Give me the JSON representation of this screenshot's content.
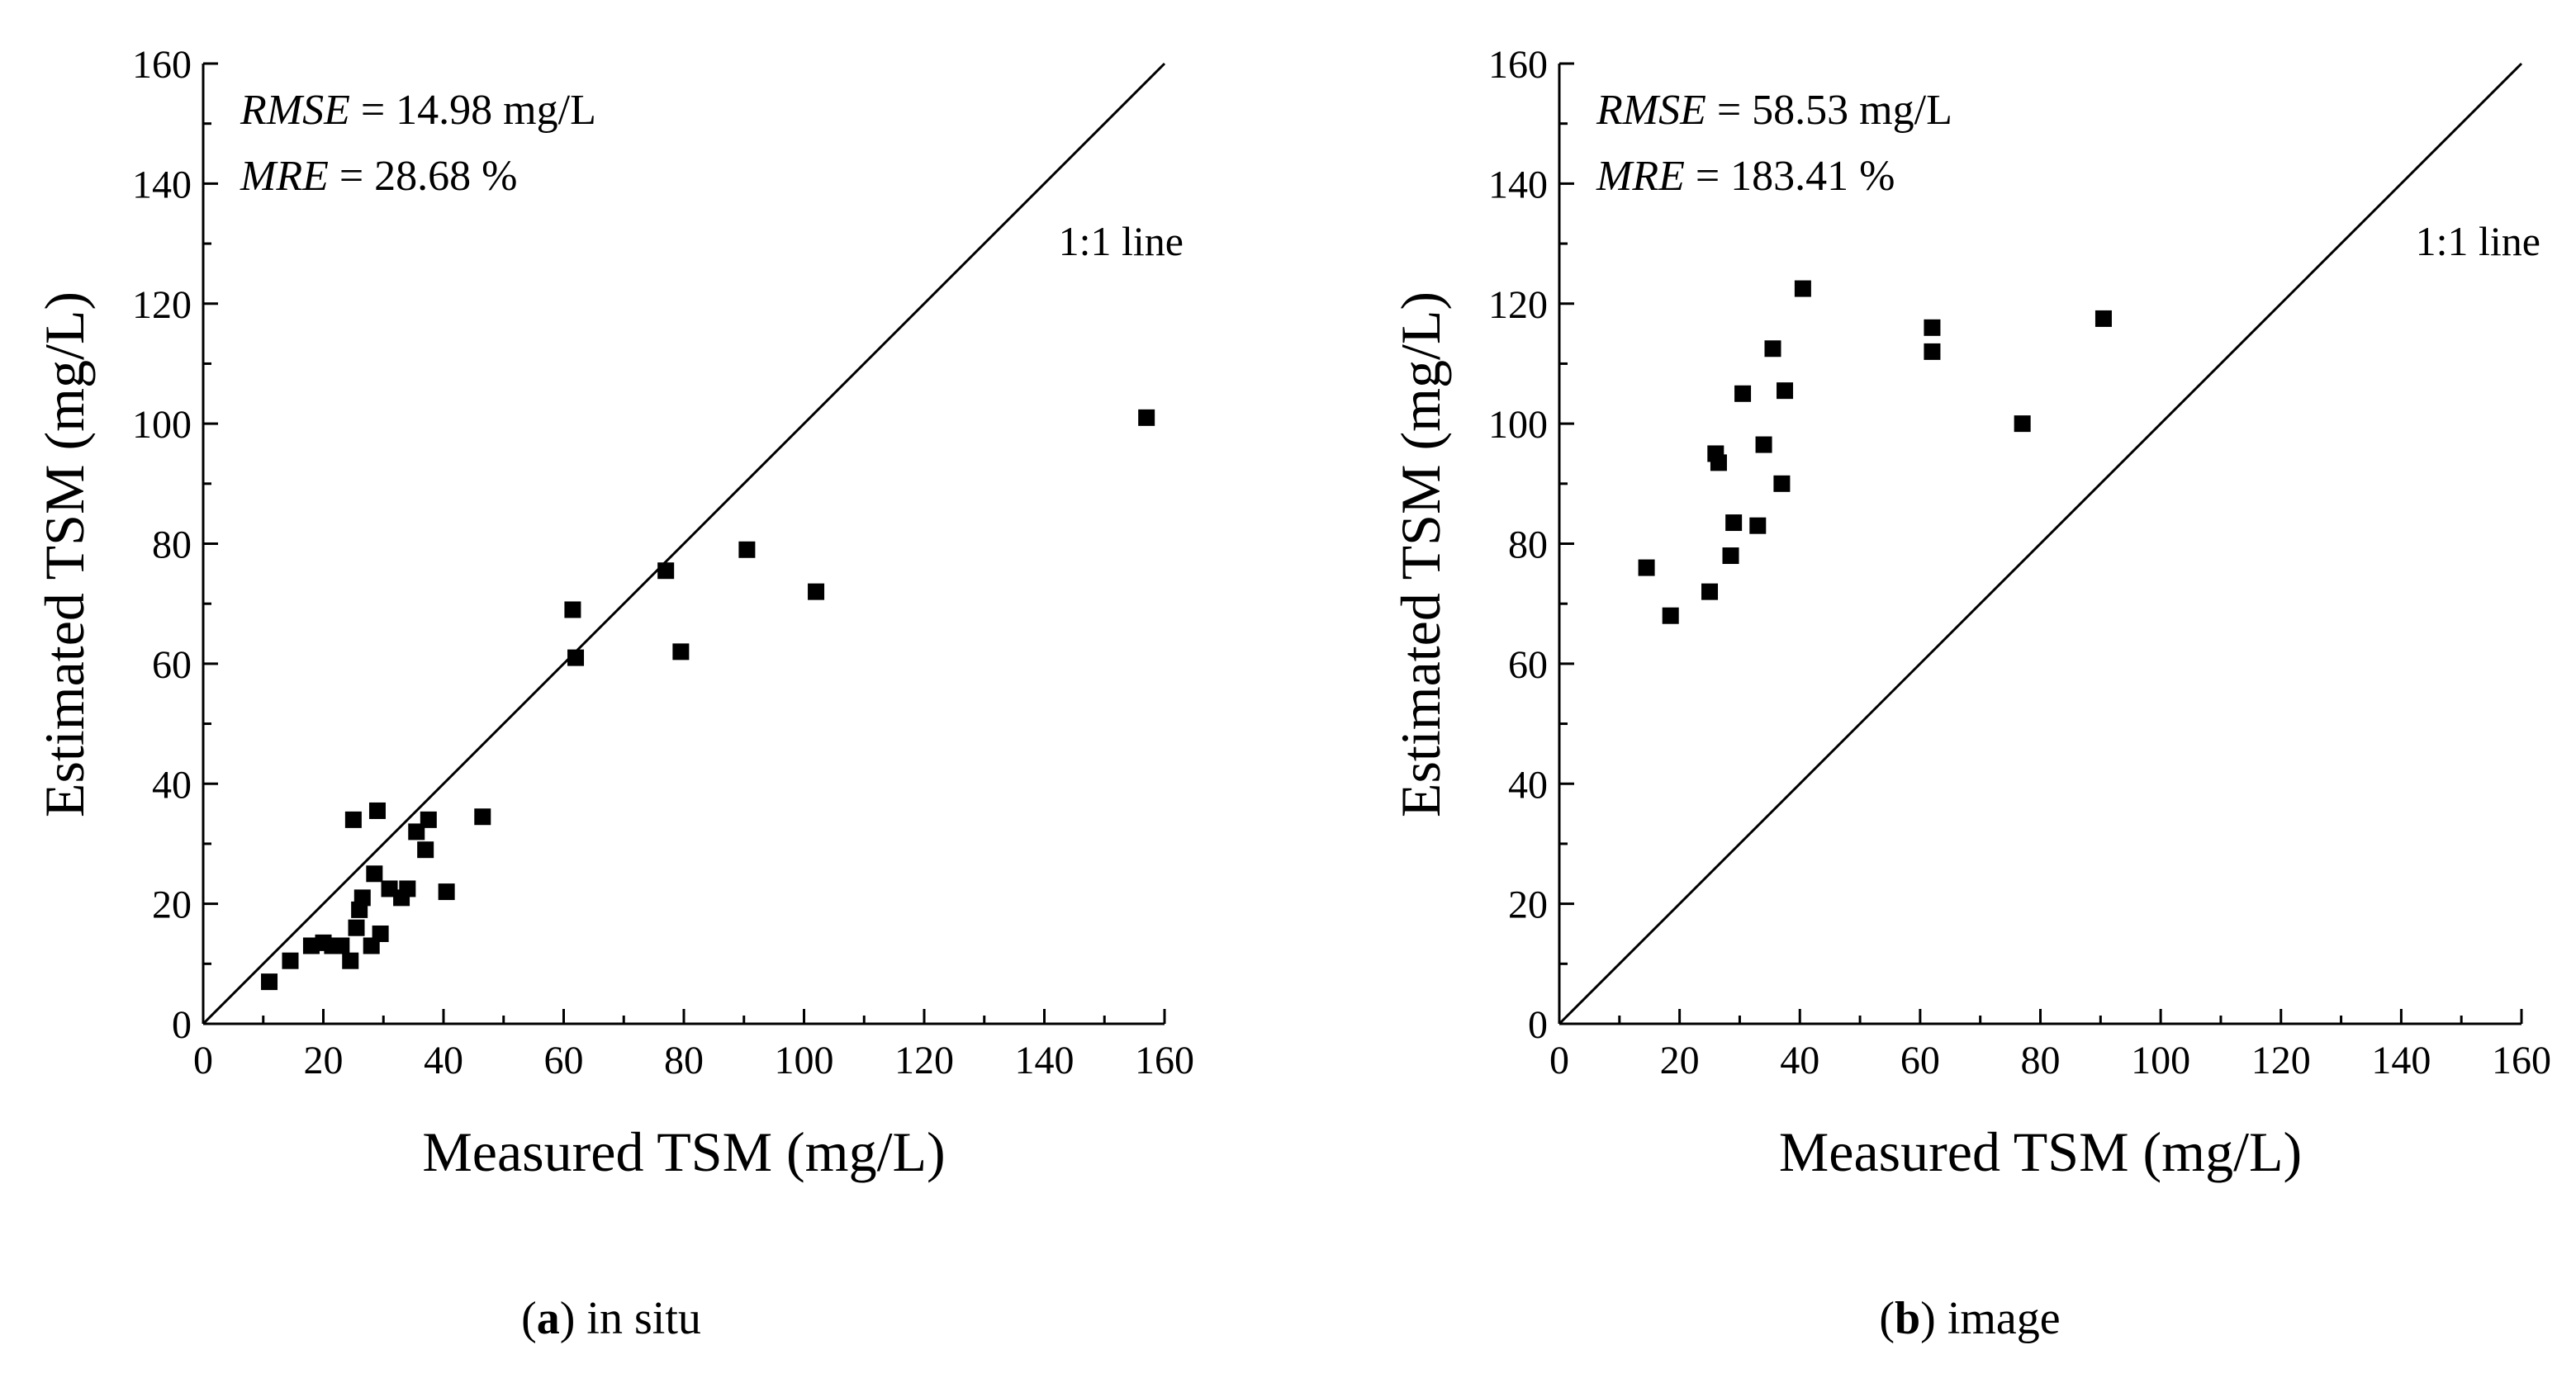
{
  "chart_data": [
    {
      "type": "scatter",
      "panel": "a",
      "caption_letter": "a",
      "caption_text": " in situ",
      "xlabel": "Measured TSM (mg/L)",
      "ylabel": "Estimated TSM (mg/L)",
      "xlim": [
        0,
        160
      ],
      "ylim": [
        0,
        160
      ],
      "xticks": [
        0,
        20,
        40,
        60,
        80,
        100,
        120,
        140,
        160
      ],
      "yticks": [
        0,
        20,
        40,
        60,
        80,
        100,
        120,
        140,
        160
      ],
      "stats": [
        {
          "name": "RMSE",
          "text": " = 14.98 mg/L"
        },
        {
          "name": "MRE",
          "text": " = 28.68 %"
        }
      ],
      "reference_line": {
        "label": "1:1 line",
        "from": [
          0,
          0
        ],
        "to": [
          160,
          160
        ]
      },
      "points": [
        {
          "x": 11,
          "y": 7
        },
        {
          "x": 14.5,
          "y": 10.5
        },
        {
          "x": 18,
          "y": 13
        },
        {
          "x": 20,
          "y": 13.5
        },
        {
          "x": 21.5,
          "y": 13
        },
        {
          "x": 23,
          "y": 13
        },
        {
          "x": 24.5,
          "y": 10.5
        },
        {
          "x": 25,
          "y": 34
        },
        {
          "x": 25.5,
          "y": 16
        },
        {
          "x": 26,
          "y": 19
        },
        {
          "x": 26.5,
          "y": 21
        },
        {
          "x": 28,
          "y": 13
        },
        {
          "x": 28.5,
          "y": 25
        },
        {
          "x": 29,
          "y": 35.5
        },
        {
          "x": 29.5,
          "y": 15
        },
        {
          "x": 31,
          "y": 22.5
        },
        {
          "x": 33,
          "y": 21
        },
        {
          "x": 34,
          "y": 22.5
        },
        {
          "x": 35.5,
          "y": 32
        },
        {
          "x": 37,
          "y": 29
        },
        {
          "x": 37.5,
          "y": 34
        },
        {
          "x": 40.5,
          "y": 22
        },
        {
          "x": 46.5,
          "y": 34.5
        },
        {
          "x": 61.5,
          "y": 69
        },
        {
          "x": 62,
          "y": 61
        },
        {
          "x": 77,
          "y": 75.5
        },
        {
          "x": 79.5,
          "y": 62
        },
        {
          "x": 90.5,
          "y": 79
        },
        {
          "x": 102,
          "y": 72
        },
        {
          "x": 157,
          "y": 101
        }
      ]
    },
    {
      "type": "scatter",
      "panel": "b",
      "caption_letter": "b",
      "caption_text": " image",
      "xlabel": "Measured TSM (mg/L)",
      "ylabel": "Estimated TSM (mg/L)",
      "xlim": [
        0,
        160
      ],
      "ylim": [
        0,
        160
      ],
      "xticks": [
        0,
        20,
        40,
        60,
        80,
        100,
        120,
        140,
        160
      ],
      "yticks": [
        0,
        20,
        40,
        60,
        80,
        100,
        120,
        140,
        160
      ],
      "stats": [
        {
          "name": "RMSE",
          "text": " = 58.53 mg/L"
        },
        {
          "name": "MRE",
          "text": " = 183.41 %"
        }
      ],
      "reference_line": {
        "label": "1:1 line",
        "from": [
          0,
          0
        ],
        "to": [
          160,
          160
        ]
      },
      "points": [
        {
          "x": 14.5,
          "y": 76
        },
        {
          "x": 18.5,
          "y": 68
        },
        {
          "x": 25,
          "y": 72
        },
        {
          "x": 26,
          "y": 95
        },
        {
          "x": 26.5,
          "y": 93.5
        },
        {
          "x": 28.5,
          "y": 78
        },
        {
          "x": 29,
          "y": 83.5
        },
        {
          "x": 30.5,
          "y": 105
        },
        {
          "x": 33,
          "y": 83
        },
        {
          "x": 34,
          "y": 96.5
        },
        {
          "x": 35.5,
          "y": 112.5
        },
        {
          "x": 37,
          "y": 90
        },
        {
          "x": 37.5,
          "y": 105.5
        },
        {
          "x": 40.5,
          "y": 122.5
        },
        {
          "x": 62,
          "y": 116
        },
        {
          "x": 62,
          "y": 112
        },
        {
          "x": 77,
          "y": 100
        },
        {
          "x": 90.5,
          "y": 117.5
        }
      ]
    }
  ]
}
